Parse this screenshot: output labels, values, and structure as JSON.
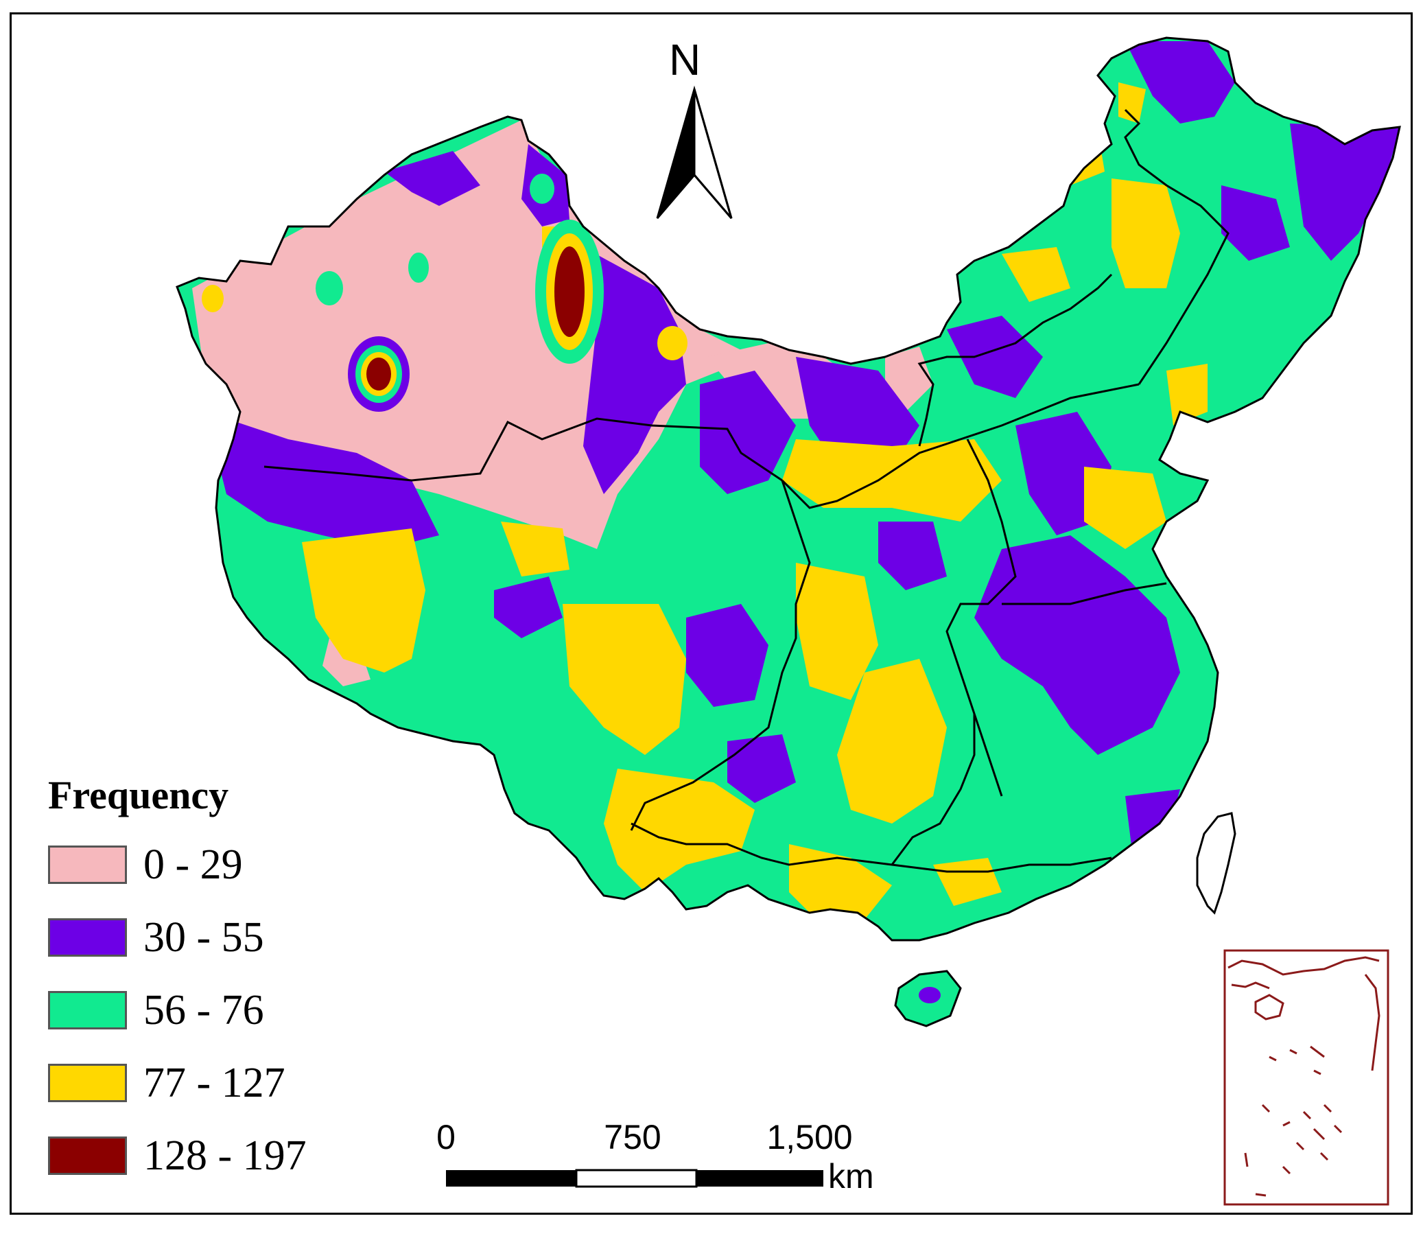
{
  "legend": {
    "title": "Frequency",
    "classes": [
      {
        "label": "0 - 29",
        "color": "#f6b8bd"
      },
      {
        "label": "30 - 55",
        "color": "#6d00e6"
      },
      {
        "label": "56 - 76",
        "color": "#11ea90"
      },
      {
        "label": "77 - 127",
        "color": "#ffd800"
      },
      {
        "label": "128 - 197",
        "color": "#8b0000"
      }
    ]
  },
  "north_arrow": {
    "label": "N"
  },
  "scale_bar": {
    "ticks": [
      "0",
      "750",
      "1,500"
    ],
    "unit": "km"
  },
  "colors": {
    "boundary": "#000000",
    "inset_outline": "#8b1a1a",
    "background": "#ffffff"
  }
}
